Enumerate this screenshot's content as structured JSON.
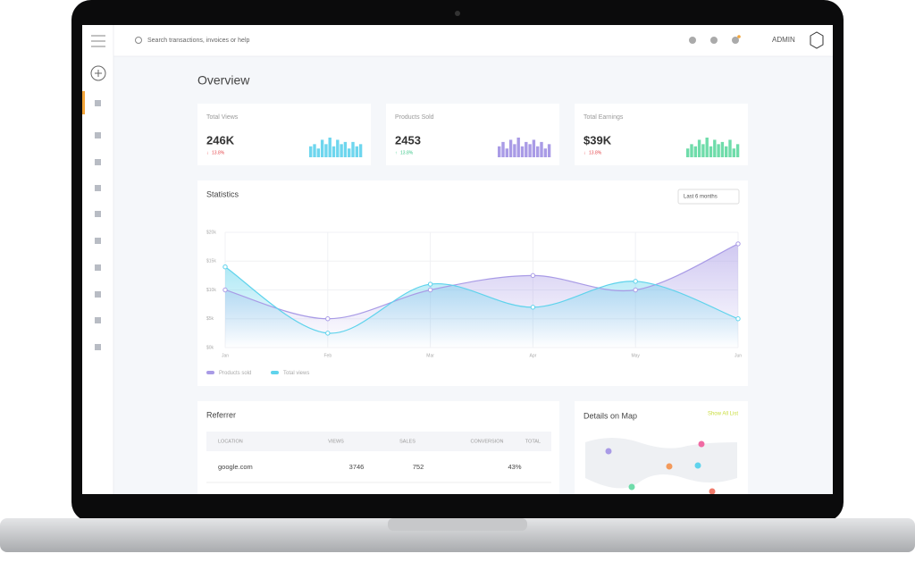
{
  "header": {
    "search_placeholder": "Search transactions, invoices or help",
    "user": "ADMIN"
  },
  "page_title": "Overview",
  "cards": [
    {
      "label": "Total Views",
      "value": "246K",
      "change": "13.8%",
      "color": "#6ed6ee",
      "trend": "down",
      "spark": [
        5,
        6,
        4,
        8,
        6,
        9,
        5,
        8,
        6,
        7,
        4,
        7,
        5,
        6
      ]
    },
    {
      "label": "Products Sold",
      "value": "2453",
      "change": "13.8%",
      "color": "#a99be6",
      "trend": "up",
      "spark": [
        5,
        7,
        4,
        8,
        6,
        9,
        5,
        7,
        6,
        8,
        5,
        7,
        4,
        6
      ]
    },
    {
      "label": "Total Earnings",
      "value": "$39K",
      "change": "13.8%",
      "color": "#6fdcaa",
      "trend": "down",
      "spark": [
        4,
        6,
        5,
        8,
        6,
        9,
        5,
        8,
        6,
        7,
        5,
        8,
        4,
        6
      ]
    }
  ],
  "statistics": {
    "type": "line",
    "title": "Statistics",
    "range_select": "Last 6 months",
    "categories": [
      "Jan",
      "Feb",
      "Mar",
      "Apr",
      "May",
      "Jun"
    ],
    "series": [
      {
        "name": "Products sold",
        "color": "#a99be6",
        "values": [
          10,
          5,
          10,
          12.5,
          10,
          18
        ]
      },
      {
        "name": "Total views",
        "color": "#5fd3ec",
        "values": [
          14,
          2.5,
          11,
          7,
          11.5,
          5
        ]
      }
    ],
    "ylim": [
      0,
      20
    ],
    "yticks": [
      {
        "value": 0,
        "label": "$0k"
      },
      {
        "value": 5,
        "label": "$5k"
      },
      {
        "value": 10,
        "label": "$10k"
      },
      {
        "value": 15,
        "label": "$15k"
      },
      {
        "value": 20,
        "label": "$20k"
      }
    ],
    "grid": true
  },
  "referrer": {
    "title": "Referrer",
    "columns": [
      "LOCATION",
      "VIEWS",
      "SALES",
      "CONVERSION",
      "TOTAL"
    ],
    "rows": [
      [
        "google.com",
        "3746",
        "752",
        "43%"
      ]
    ]
  },
  "map": {
    "title": "Details on Map",
    "link": "Show All List"
  }
}
